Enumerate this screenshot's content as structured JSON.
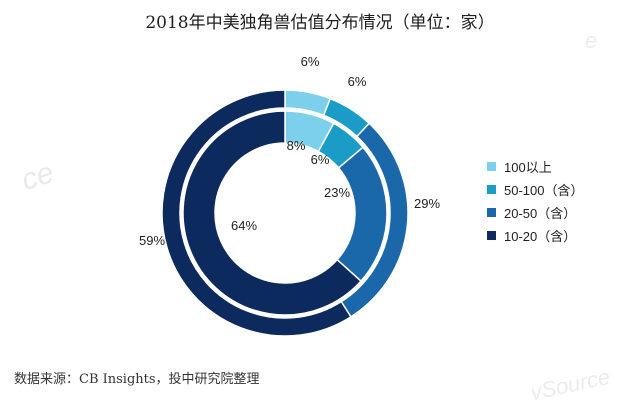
{
  "title": "2018年中美独角兽估值分布情况（单位：家）",
  "source": "数据来源：CB Insights，投中研究院整理",
  "watermarks": {
    "left": "ce",
    "top_right": "e",
    "bottom_right": "vSource"
  },
  "chart_data": {
    "type": "pie",
    "subtype": "double-donut",
    "categories": [
      "100以上",
      "50-100（含）",
      "20-50（含）",
      "10-20（含）"
    ],
    "colors": [
      "#7dd0ec",
      "#1a9cc6",
      "#1a68aa",
      "#0c2a5e"
    ],
    "series": [
      {
        "name": "outer ring",
        "values": [
          6,
          6,
          29,
          59
        ]
      },
      {
        "name": "inner ring",
        "values": [
          8,
          6,
          23,
          64
        ]
      }
    ],
    "labels": {
      "outer": [
        "6%",
        "6%",
        "29%",
        "59%"
      ],
      "inner": [
        "8%",
        "6%",
        "23%",
        "64%"
      ]
    },
    "legend_position": "right"
  }
}
